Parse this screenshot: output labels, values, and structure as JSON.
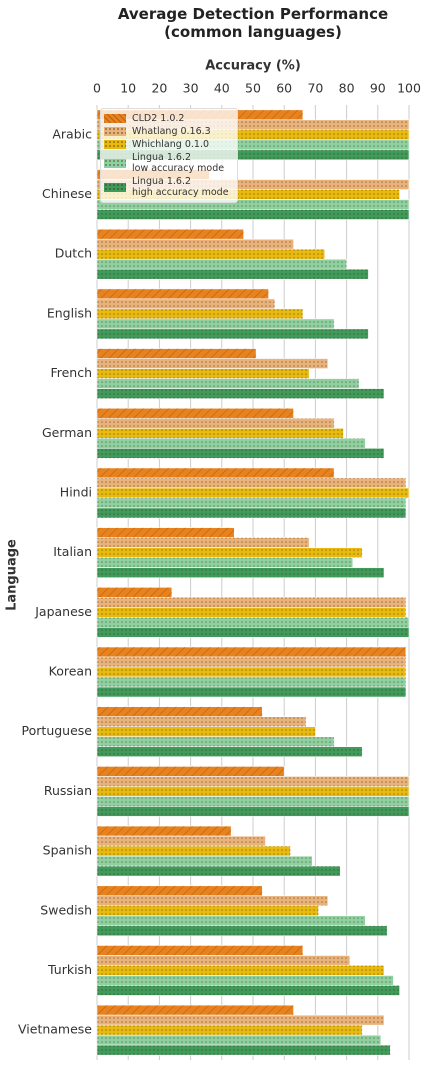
{
  "chart_data": {
    "type": "hbar",
    "title": "Average Detection Performance\n(common languages)",
    "x_label": "Accuracy (%)",
    "y_label": "Language",
    "categories": [
      "Arabic",
      "Chinese",
      "Dutch",
      "English",
      "French",
      "German",
      "Hindi",
      "Italian",
      "Japanese",
      "Korean",
      "Portuguese",
      "Russian",
      "Spanish",
      "Swedish",
      "Turkish",
      "Vietnamese"
    ],
    "series": [
      {
        "name": "CLD2 1.0.2",
        "color": "#e8821e",
        "hatch": "/",
        "values": [
          66,
          36,
          47,
          55,
          51,
          63,
          76,
          44,
          24,
          99,
          53,
          60,
          43,
          53,
          66,
          63
        ]
      },
      {
        "name": "Whatlang 0.16.3",
        "color": "#e8b27a",
        "hatch": ".",
        "values": [
          100,
          100,
          63,
          57,
          74,
          76,
          99,
          68,
          99,
          99,
          67,
          100,
          54,
          74,
          81,
          92
        ]
      },
      {
        "name": "Whichlang 0.1.0",
        "color": "#e8b90e",
        "hatch": ".",
        "values": [
          100,
          97,
          73,
          66,
          68,
          79,
          100,
          85,
          99,
          99,
          70,
          100,
          62,
          71,
          92,
          85
        ]
      },
      {
        "name": "Lingua 1.6.2\nlow accuracy mode",
        "color": "#8fd0a0",
        "hatch": ".",
        "values": [
          100,
          100,
          80,
          76,
          84,
          86,
          99,
          82,
          100,
          99,
          76,
          100,
          69,
          86,
          95,
          91
        ]
      },
      {
        "name": "Lingua 1.6.2\nhigh accuracy mode",
        "color": "#3f9a5c",
        "hatch": ".",
        "values": [
          100,
          100,
          87,
          87,
          92,
          92,
          99,
          92,
          100,
          99,
          85,
          100,
          78,
          93,
          97,
          94
        ]
      }
    ],
    "xlim": [
      0,
      100
    ],
    "xticks": [
      0,
      10,
      20,
      30,
      40,
      50,
      60,
      70,
      80,
      90,
      100
    ],
    "grid": true
  }
}
